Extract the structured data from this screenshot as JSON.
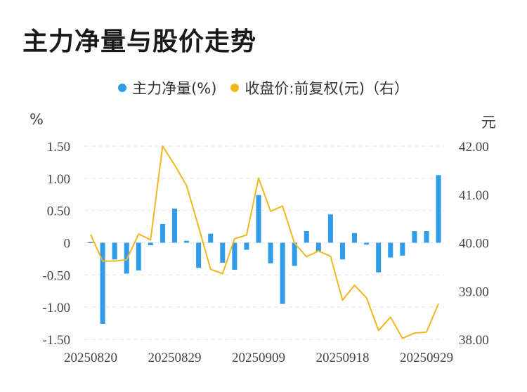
{
  "title": "主力净量与股价走势",
  "legend": [
    {
      "label": "主力净量(%)",
      "color": "#2f9be9"
    },
    {
      "label": "收盘价:前复权(元)（右）",
      "color": "#f3b61f"
    }
  ],
  "chart_data": {
    "type": "bar+line",
    "left_axis": {
      "unit": "%",
      "ticks": [
        "1.50",
        "1.00",
        "0.50",
        "0",
        "-0.50",
        "-1.00",
        "-1.50"
      ],
      "range": [
        -1.5,
        1.5
      ]
    },
    "right_axis": {
      "unit": "元",
      "ticks": [
        "42.00",
        "41.00",
        "40.00",
        "39.00",
        "38.00"
      ],
      "range": [
        38.0,
        42.0
      ]
    },
    "x_tick_labels": [
      "20250820",
      "20250829",
      "20250909",
      "20250918",
      "20250929"
    ],
    "x_tick_indices": [
      0,
      7,
      14,
      21,
      28
    ],
    "series": [
      {
        "name": "主力净量(%)",
        "kind": "bar",
        "axis": "left",
        "values": [
          0.01,
          -1.26,
          -0.26,
          -0.48,
          -0.43,
          -0.04,
          0.29,
          0.53,
          0.03,
          -0.39,
          0.14,
          -0.31,
          -0.42,
          -0.11,
          0.74,
          -0.32,
          -0.95,
          -0.36,
          0.18,
          -0.14,
          0.44,
          -0.26,
          0.15,
          -0.03,
          -0.46,
          -0.23,
          -0.2,
          0.18,
          0.18,
          1.05
        ]
      },
      {
        "name": "收盘价:前复权(元)（右）",
        "kind": "line",
        "axis": "right",
        "values": [
          40.17,
          39.62,
          39.62,
          39.65,
          40.18,
          40.06,
          42.0,
          41.61,
          41.18,
          40.33,
          39.45,
          39.36,
          40.08,
          40.16,
          41.34,
          40.65,
          40.76,
          39.99,
          39.71,
          39.83,
          39.72,
          38.81,
          39.12,
          38.86,
          38.18,
          38.46,
          38.02,
          38.13,
          38.15,
          38.74
        ]
      }
    ],
    "grid": true,
    "legend_position": "top"
  }
}
